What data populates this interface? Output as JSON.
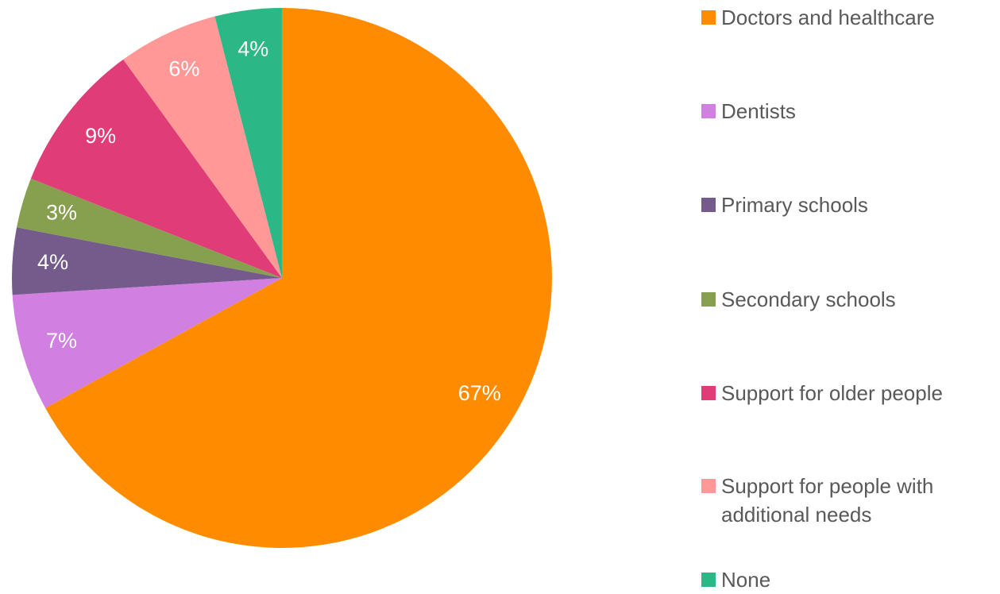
{
  "chart_data": {
    "type": "pie",
    "categories": [
      "Doctors and healthcare",
      "Dentists",
      "Primary schools",
      "Secondary schools",
      "Support for older people",
      "Support for people with additional needs",
      "None"
    ],
    "values": [
      67,
      7,
      4,
      3,
      9,
      6,
      4
    ],
    "value_labels": [
      "67%",
      "7%",
      "4%",
      "3%",
      "9%",
      "6%",
      "4%"
    ],
    "colors": [
      "#ff8c00",
      "#d17fe0",
      "#755a8c",
      "#86a04f",
      "#e03c78",
      "#ff9896",
      "#2cb886"
    ],
    "legend": "right"
  }
}
